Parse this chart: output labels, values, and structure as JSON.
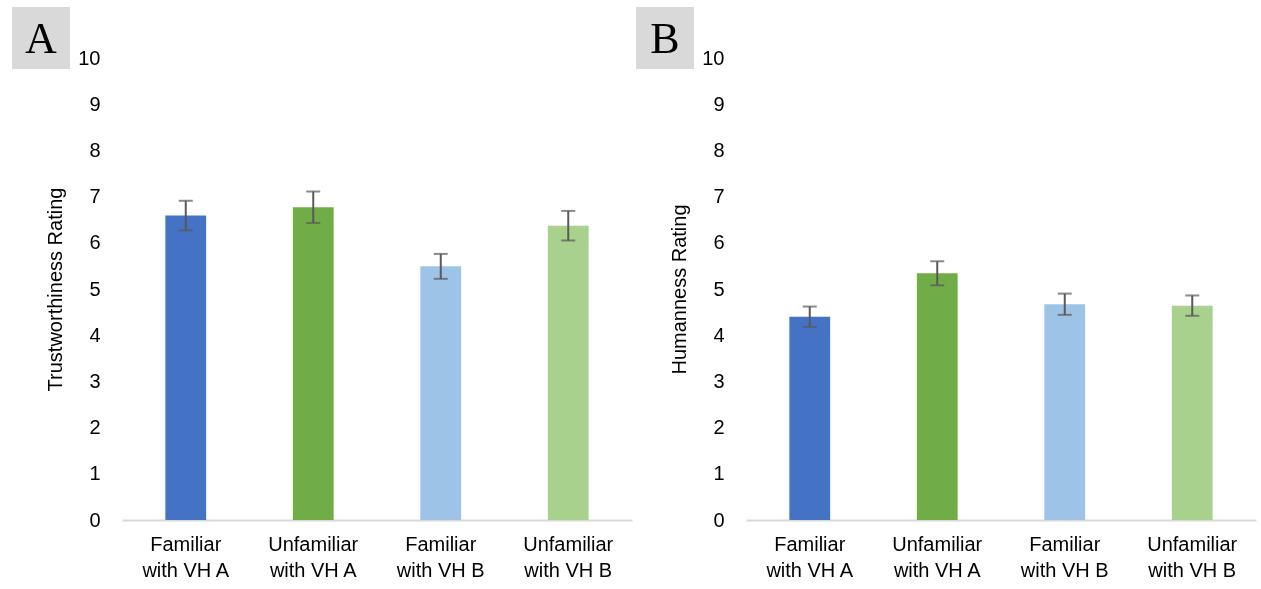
{
  "chart_data": [
    {
      "type": "bar",
      "title": "A",
      "ylabel": "Trustworthiness Rating",
      "categories": [
        "Familiar with VH A",
        "Unfamiliar with VH A",
        "Familiar with VH B",
        "Unfamiliar with VH B"
      ],
      "values": [
        6.59,
        6.77,
        5.49,
        6.37
      ],
      "colors": [
        "#4472c4",
        "#70ad47",
        "#9dc3e6",
        "#a9d18e"
      ],
      "errors": [
        0.32,
        0.34,
        0.27,
        0.32
      ],
      "ylim": [
        0,
        10
      ],
      "yticks": [
        0,
        1,
        2,
        3,
        4,
        5,
        6,
        7,
        8,
        9,
        10
      ]
    },
    {
      "type": "bar",
      "title": "B",
      "ylabel": "Humanness Rating",
      "categories": [
        "Familiar with VH A",
        "Unfamiliar with VH A",
        "Familiar with VH B",
        "Unfamiliar with VH B"
      ],
      "values": [
        4.4,
        5.34,
        4.67,
        4.64
      ],
      "colors": [
        "#4472c4",
        "#70ad47",
        "#9dc3e6",
        "#a9d18e"
      ],
      "errors": [
        0.22,
        0.26,
        0.23,
        0.22
      ],
      "ylim": [
        0,
        10
      ],
      "yticks": [
        0,
        1,
        2,
        3,
        4,
        5,
        6,
        7,
        8,
        9,
        10
      ]
    }
  ]
}
